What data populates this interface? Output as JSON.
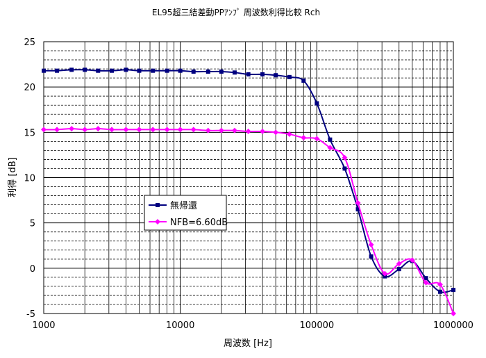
{
  "chart_data": {
    "type": "line",
    "title": "EL95超三結差動PPｱﾝﾌﾟ 周波数利得比較 Rch",
    "xlabel": "周波数 [Hz]",
    "ylabel": "利得 [dB]",
    "x_scale": "log",
    "xlim": [
      1000,
      1000000
    ],
    "ylim": [
      -5,
      25
    ],
    "x_ticks": [
      1000,
      10000,
      100000,
      1000000
    ],
    "x_tick_labels": [
      "1000",
      "10000",
      "100000",
      "1000000"
    ],
    "y_ticks": [
      -5,
      0,
      5,
      10,
      15,
      20,
      25
    ],
    "y_tick_labels": [
      "-5",
      "0",
      "5",
      "10",
      "15",
      "20",
      "25"
    ],
    "grid": true,
    "legend_position": "center-left",
    "series": [
      {
        "name": "無帰還",
        "color": "#000080",
        "marker": "square",
        "x": [
          1000,
          1250,
          1600,
          2000,
          2500,
          3150,
          4000,
          5000,
          6300,
          8000,
          10000,
          12500,
          16000,
          20000,
          25000,
          31500,
          40000,
          50000,
          63000,
          80000,
          100000,
          125000,
          160000,
          200000,
          250000,
          315000,
          400000,
          500000,
          630000,
          800000,
          1000000
        ],
        "y": [
          21.8,
          21.8,
          21.9,
          21.9,
          21.8,
          21.8,
          21.9,
          21.8,
          21.8,
          21.8,
          21.8,
          21.7,
          21.7,
          21.7,
          21.6,
          21.4,
          21.4,
          21.3,
          21.1,
          20.7,
          18.2,
          14.2,
          11.0,
          6.5,
          1.3,
          -0.9,
          -0.1,
          0.8,
          -1.1,
          -2.6,
          -2.4
        ]
      },
      {
        "name": "NFB=6.60dB",
        "color": "#FF00FF",
        "marker": "diamond",
        "x": [
          1000,
          1250,
          1600,
          2000,
          2500,
          3150,
          4000,
          5000,
          6300,
          8000,
          10000,
          12500,
          16000,
          20000,
          25000,
          31500,
          40000,
          50000,
          63000,
          80000,
          100000,
          125000,
          160000,
          200000,
          250000,
          315000,
          400000,
          500000,
          630000,
          800000,
          1000000
        ],
        "y": [
          15.3,
          15.3,
          15.4,
          15.3,
          15.4,
          15.3,
          15.3,
          15.3,
          15.3,
          15.3,
          15.3,
          15.3,
          15.2,
          15.2,
          15.2,
          15.1,
          15.1,
          15.0,
          14.8,
          14.4,
          14.3,
          13.3,
          12.2,
          7.2,
          2.6,
          -0.6,
          0.5,
          0.9,
          -1.6,
          -1.8,
          -5.0
        ]
      }
    ]
  }
}
